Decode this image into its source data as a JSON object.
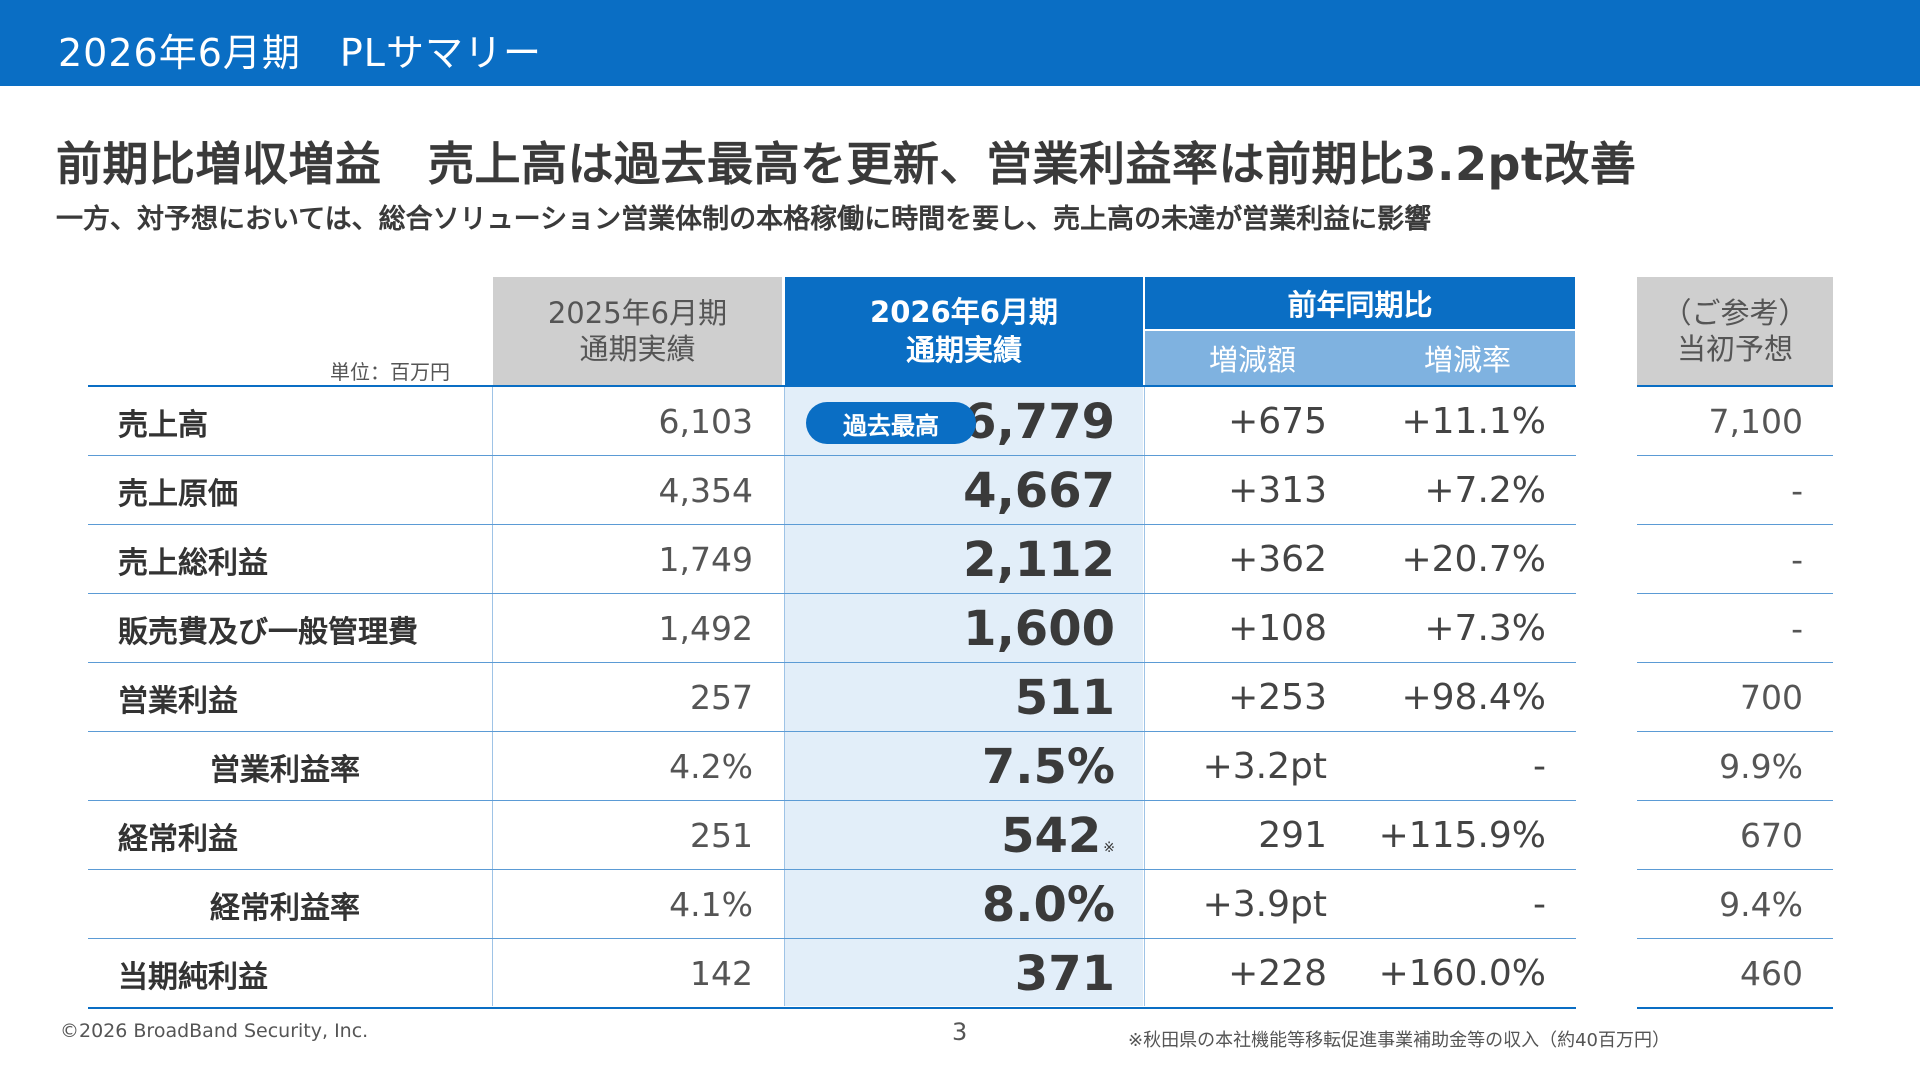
{
  "header": {
    "title": "2026年6月期　PLサマリー"
  },
  "headline": "前期比増収増益　売上高は過去最高を更新、営業利益率は前期比3.2pt改善",
  "subline": "一方、対予想においては、総合ソリューション営業体制の本格稼働に時間を要し、売上高の未達が営業利益に影響",
  "table": {
    "unit": "単位：百万円",
    "col_prev": {
      "line1": "2025年6月期",
      "line2": "通期実績"
    },
    "col_cur": {
      "line1": "2026年6月期",
      "line2": "通期実績"
    },
    "col_yoy": {
      "title": "前年同期比",
      "diff": "増減額",
      "rate": "増減率"
    },
    "col_ref": {
      "line1": "（ご参考）",
      "line2": "当初予想"
    },
    "badge": "過去最高",
    "rows": [
      {
        "label": "売上高",
        "prev": "6,103",
        "cur": "6,779",
        "diff": "+675",
        "rate": "+11.1%",
        "ref": "7,100"
      },
      {
        "label": "売上原価",
        "prev": "4,354",
        "cur": "4,667",
        "diff": "+313",
        "rate": "+7.2%",
        "ref": "-"
      },
      {
        "label": "売上総利益",
        "prev": "1,749",
        "cur": "2,112",
        "diff": "+362",
        "rate": "+20.7%",
        "ref": "-"
      },
      {
        "label": "販売費及び一般管理費",
        "prev": "1,492",
        "cur": "1,600",
        "diff": "+108",
        "rate": "+7.3%",
        "ref": "-"
      },
      {
        "label": "営業利益",
        "prev": "257",
        "cur": "511",
        "diff": "+253",
        "rate": "+98.4%",
        "ref": "700"
      },
      {
        "label": "営業利益率",
        "prev": "4.2%",
        "cur": "7.5%",
        "diff": "+3.2pt",
        "rate": "-",
        "ref": "9.9%"
      },
      {
        "label": "経常利益",
        "prev": "251",
        "cur": "542",
        "cur_mark": "※",
        "diff": "291",
        "rate": "+115.9%",
        "ref": "670"
      },
      {
        "label": "経常利益率",
        "prev": "4.1%",
        "cur": "8.0%",
        "diff": "+3.9pt",
        "rate": "-",
        "ref": "9.4%"
      },
      {
        "label": "当期純利益",
        "prev": "142",
        "cur": "371",
        "diff": "+228",
        "rate": "+160.0%",
        "ref": "460"
      }
    ]
  },
  "footer": {
    "copyright": "©2026 BroadBand Security, Inc.",
    "page": "3",
    "note": "※秋田県の本社機能等移転促進事業補助金等の収入（約40百万円）"
  },
  "colors": {
    "brand_blue": "#0a6ec4",
    "light_blue": "#7fb2e0",
    "highlight_bg": "#e2eef9",
    "gray_header": "#cfcfcf"
  }
}
